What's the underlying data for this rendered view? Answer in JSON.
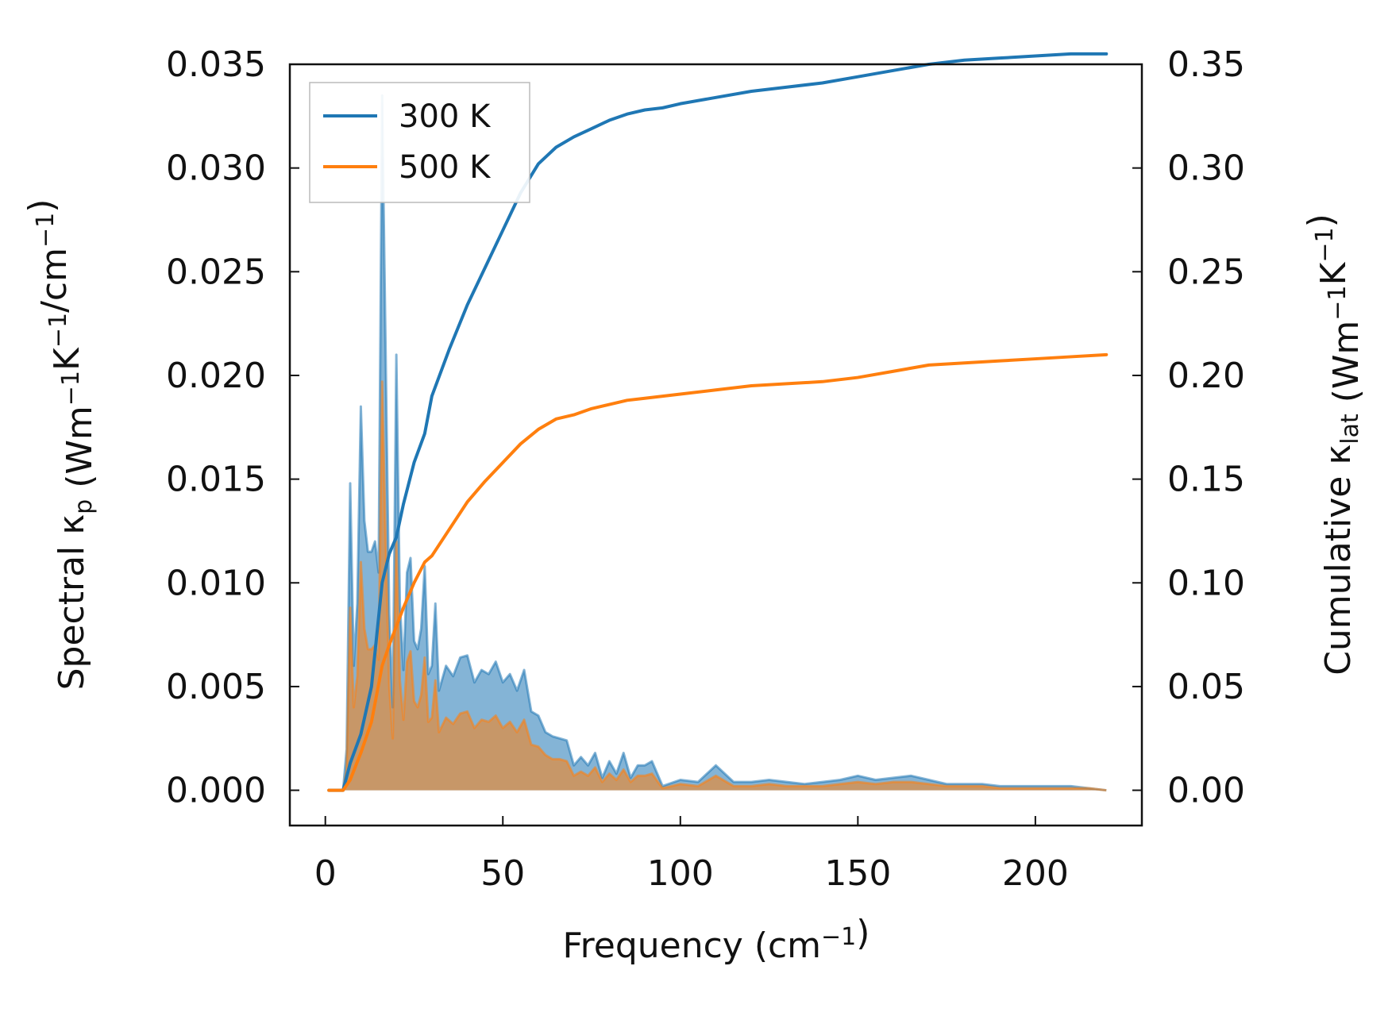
{
  "chart_data": {
    "type": "line",
    "x_label_parts": [
      "Frequency (cm",
      "−1",
      ")"
    ],
    "y_left_label_parts": [
      "Spectral κ",
      "p",
      " (Wm",
      "−1",
      "K",
      "−1",
      "/cm",
      "−1",
      ")"
    ],
    "y_right_label_parts": [
      "Cumulative κ",
      "lat",
      " (Wm",
      "−1",
      "K",
      "−1",
      ")"
    ],
    "xlim": [
      -10,
      230
    ],
    "ylim_left": [
      -0.0017,
      0.035
    ],
    "ylim_right": [
      -0.017,
      0.35
    ],
    "x_ticks": [
      "0",
      "50",
      "100",
      "150",
      "200"
    ],
    "y_left_ticks": [
      "0.000",
      "0.005",
      "0.010",
      "0.015",
      "0.020",
      "0.025",
      "0.030",
      "0.035"
    ],
    "y_right_ticks": [
      "0.00",
      "0.05",
      "0.10",
      "0.15",
      "0.20",
      "0.25",
      "0.30",
      "0.35"
    ],
    "legend": {
      "position": "top-left",
      "entries": [
        {
          "label": "300 K",
          "color": "#1f77b4"
        },
        {
          "label": "500 K",
          "color": "#ff7f0e"
        }
      ]
    },
    "series_cumulative": [
      {
        "name": "300 K",
        "axis": "right",
        "color": "#1f77b4",
        "x": [
          1,
          5,
          7,
          10,
          13,
          16,
          18,
          20,
          22,
          25,
          28,
          30,
          35,
          40,
          45,
          50,
          55,
          60,
          65,
          70,
          75,
          80,
          85,
          90,
          95,
          100,
          110,
          120,
          130,
          140,
          150,
          160,
          170,
          180,
          190,
          200,
          210,
          220
        ],
        "y": [
          0,
          0,
          0.013,
          0.027,
          0.05,
          0.1,
          0.114,
          0.122,
          0.138,
          0.158,
          0.172,
          0.19,
          0.213,
          0.234,
          0.252,
          0.27,
          0.288,
          0.302,
          0.31,
          0.315,
          0.319,
          0.323,
          0.326,
          0.328,
          0.329,
          0.331,
          0.334,
          0.337,
          0.339,
          0.341,
          0.344,
          0.347,
          0.35,
          0.352,
          0.353,
          0.354,
          0.355,
          0.355
        ]
      },
      {
        "name": "500 K",
        "axis": "right",
        "color": "#ff7f0e",
        "x": [
          1,
          5,
          7,
          10,
          13,
          16,
          18,
          20,
          22,
          25,
          28,
          30,
          35,
          40,
          45,
          50,
          55,
          60,
          65,
          70,
          75,
          80,
          85,
          90,
          95,
          100,
          110,
          120,
          130,
          140,
          150,
          160,
          170,
          180,
          190,
          200,
          210,
          220
        ],
        "y": [
          0,
          0,
          0.005,
          0.018,
          0.033,
          0.06,
          0.07,
          0.079,
          0.088,
          0.1,
          0.11,
          0.113,
          0.126,
          0.139,
          0.149,
          0.158,
          0.167,
          0.174,
          0.179,
          0.181,
          0.184,
          0.186,
          0.188,
          0.189,
          0.19,
          0.191,
          0.193,
          0.195,
          0.196,
          0.197,
          0.199,
          0.202,
          0.205,
          0.206,
          0.207,
          0.208,
          0.209,
          0.21
        ]
      }
    ],
    "series_spectral": [
      {
        "name": "300 K",
        "axis": "left",
        "color": "#1f77b4",
        "x": [
          1,
          5,
          6,
          7,
          8,
          9,
          10,
          11,
          12,
          13,
          14,
          15,
          16,
          17,
          18,
          19,
          20,
          21,
          22,
          23,
          24,
          25,
          26,
          27,
          28,
          29,
          30,
          31,
          32,
          34,
          36,
          38,
          40,
          42,
          44,
          46,
          48,
          50,
          52,
          54,
          56,
          58,
          60,
          62,
          64,
          66,
          68,
          70,
          72,
          74,
          76,
          78,
          80,
          82,
          84,
          86,
          88,
          90,
          92,
          95,
          100,
          105,
          110,
          115,
          120,
          125,
          130,
          135,
          140,
          145,
          150,
          155,
          160,
          165,
          170,
          175,
          180,
          185,
          190,
          195,
          200,
          205,
          210,
          215,
          220
        ],
        "y": [
          0,
          0,
          0.002,
          0.0148,
          0.006,
          0.009,
          0.0185,
          0.013,
          0.0115,
          0.0115,
          0.012,
          0.0105,
          0.0335,
          0.021,
          0.0085,
          0.004,
          0.021,
          0.009,
          0.0058,
          0.0105,
          0.0112,
          0.0072,
          0.0068,
          0.0078,
          0.0108,
          0.0056,
          0.006,
          0.009,
          0.0048,
          0.006,
          0.0055,
          0.0064,
          0.0065,
          0.0052,
          0.0058,
          0.0056,
          0.0062,
          0.0052,
          0.0056,
          0.0048,
          0.0058,
          0.0038,
          0.0036,
          0.0028,
          0.0026,
          0.0025,
          0.0024,
          0.0012,
          0.0016,
          0.0012,
          0.0018,
          0.0006,
          0.0014,
          0.0008,
          0.0018,
          0.0006,
          0.0012,
          0.0012,
          0.0014,
          0.0002,
          0.0005,
          0.0004,
          0.0012,
          0.0004,
          0.0004,
          0.0005,
          0.0004,
          0.0003,
          0.0004,
          0.0005,
          0.0007,
          0.0005,
          0.0006,
          0.0007,
          0.0005,
          0.0003,
          0.0003,
          0.0003,
          0.0002,
          0.0002,
          0.0002,
          0.0002,
          0.0002,
          0.0001,
          0.0
        ]
      },
      {
        "name": "500 K",
        "axis": "left",
        "color": "#ff7f0e",
        "x": [
          1,
          5,
          6,
          7,
          8,
          9,
          10,
          11,
          12,
          13,
          14,
          15,
          16,
          17,
          18,
          19,
          20,
          21,
          22,
          23,
          24,
          25,
          26,
          27,
          28,
          29,
          30,
          31,
          32,
          34,
          36,
          38,
          40,
          42,
          44,
          46,
          48,
          50,
          52,
          54,
          56,
          58,
          60,
          62,
          64,
          66,
          68,
          70,
          72,
          74,
          76,
          78,
          80,
          82,
          84,
          86,
          88,
          90,
          92,
          95,
          100,
          105,
          110,
          115,
          120,
          125,
          130,
          135,
          140,
          145,
          150,
          155,
          160,
          165,
          170,
          175,
          180,
          185,
          190,
          195,
          200,
          205,
          210,
          215,
          220
        ],
        "y": [
          0,
          0,
          0.001,
          0.0088,
          0.004,
          0.0055,
          0.011,
          0.0078,
          0.0068,
          0.0068,
          0.007,
          0.0063,
          0.0197,
          0.012,
          0.005,
          0.0025,
          0.012,
          0.0053,
          0.0034,
          0.0062,
          0.0067,
          0.0043,
          0.004,
          0.0046,
          0.0064,
          0.0033,
          0.0035,
          0.0053,
          0.0028,
          0.0035,
          0.0032,
          0.0037,
          0.0038,
          0.003,
          0.0034,
          0.0033,
          0.0036,
          0.003,
          0.0033,
          0.0028,
          0.0034,
          0.0022,
          0.0021,
          0.0017,
          0.0015,
          0.0015,
          0.0014,
          0.0007,
          0.0009,
          0.0007,
          0.0011,
          0.0004,
          0.0008,
          0.0005,
          0.001,
          0.0004,
          0.0007,
          0.0007,
          0.0008,
          0.0001,
          0.0003,
          0.0002,
          0.0007,
          0.0002,
          0.0002,
          0.0003,
          0.0002,
          0.0002,
          0.0002,
          0.0003,
          0.0004,
          0.0003,
          0.0004,
          0.0004,
          0.0003,
          0.0002,
          0.0002,
          0.0002,
          0.0001,
          0.0001,
          0.0001,
          0.0001,
          0.0001,
          0.0001,
          0.0
        ]
      }
    ]
  }
}
